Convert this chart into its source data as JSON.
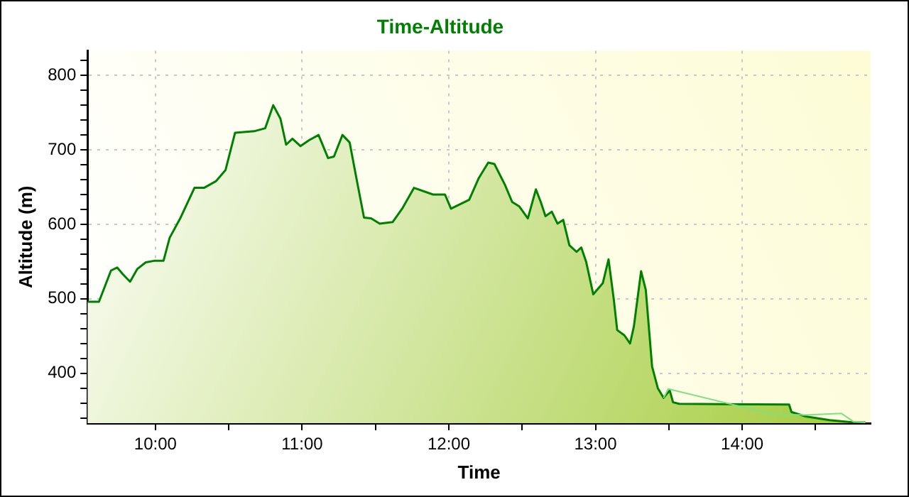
{
  "chart_data": {
    "type": "area",
    "title": "Time-Altitude",
    "xlabel": "Time",
    "ylabel": "Altitude (m)",
    "xlim": [
      9.537,
      14.876
    ],
    "ylim": [
      333,
      833
    ],
    "xticks": [
      {
        "value": 10,
        "label": "10:00"
      },
      {
        "value": 10.5,
        "label": null
      },
      {
        "value": 11,
        "label": "11:00"
      },
      {
        "value": 11.5,
        "label": null
      },
      {
        "value": 12,
        "label": "12:00"
      },
      {
        "value": 12.5,
        "label": null
      },
      {
        "value": 13,
        "label": "13:00"
      },
      {
        "value": 13.5,
        "label": null
      },
      {
        "value": 14,
        "label": "14:00"
      },
      {
        "value": 14.5,
        "label": null
      }
    ],
    "yticks": [
      {
        "value": 340,
        "label": null
      },
      {
        "value": 360,
        "label": null
      },
      {
        "value": 380,
        "label": null
      },
      400,
      {
        "value": 420,
        "label": null
      },
      {
        "value": 440,
        "label": null
      },
      {
        "value": 460,
        "label": null
      },
      {
        "value": 480,
        "label": null
      },
      500,
      {
        "value": 520,
        "label": null
      },
      {
        "value": 540,
        "label": null
      },
      {
        "value": 560,
        "label": null
      },
      {
        "value": 580,
        "label": null
      },
      600,
      {
        "value": 620,
        "label": null
      },
      {
        "value": 640,
        "label": null
      },
      {
        "value": 660,
        "label": null
      },
      {
        "value": 680,
        "label": null
      },
      700,
      {
        "value": 720,
        "label": null
      },
      {
        "value": 740,
        "label": null
      },
      {
        "value": 760,
        "label": null
      },
      {
        "value": 780,
        "label": null
      },
      800,
      {
        "value": 820,
        "label": null
      }
    ],
    "grid": true,
    "legend": false,
    "marker": "none",
    "line_style": "solid",
    "series": [
      {
        "type": "area",
        "color": "#008000",
        "x": [
          9.537,
          9.615,
          9.697,
          9.739,
          9.778,
          9.827,
          9.876,
          9.934,
          9.99,
          10.055,
          10.097,
          10.169,
          10.266,
          10.331,
          10.413,
          10.478,
          10.543,
          10.673,
          10.748,
          10.803,
          10.852,
          10.891,
          10.934,
          10.989,
          11.047,
          11.112,
          11.177,
          11.217,
          11.275,
          11.324,
          11.373,
          11.422,
          11.47,
          11.529,
          11.617,
          11.682,
          11.763,
          11.893,
          11.974,
          12.015,
          12.139,
          12.204,
          12.269,
          12.311,
          12.383,
          12.432,
          12.481,
          12.539,
          12.594,
          12.627,
          12.659,
          12.702,
          12.741,
          12.78,
          12.822,
          12.871,
          12.903,
          12.936,
          12.985,
          13.05,
          13.089,
          13.125,
          13.148,
          13.197,
          13.236,
          13.262,
          13.311,
          13.343,
          13.386,
          13.425,
          13.464,
          13.506,
          13.529,
          13.571,
          14.32,
          14.336,
          14.433,
          14.596,
          14.759,
          14.84
        ],
        "values": [
          496,
          496,
          538,
          542,
          533,
          523,
          540,
          549,
          551,
          551,
          582,
          608,
          649,
          649,
          658,
          673,
          723,
          725,
          729,
          760,
          742,
          707,
          715,
          705,
          713,
          720,
          689,
          691,
          720,
          710,
          659,
          609,
          608,
          601,
          603,
          621,
          649,
          640,
          640,
          621,
          633,
          662,
          683,
          681,
          653,
          630,
          624,
          608,
          647,
          630,
          611,
          617,
          601,
          606,
          572,
          563,
          569,
          550,
          506,
          521,
          553,
          499,
          458,
          451,
          440,
          463,
          537,
          512,
          409,
          380,
          367,
          377,
          361,
          359,
          358,
          348,
          342,
          337,
          334,
          334
        ]
      },
      {
        "type": "line",
        "color": "#80e080",
        "x": [
          13.464,
          13.496,
          14.206,
          14.433,
          14.677,
          14.759,
          14.84
        ],
        "values": [
          367,
          379,
          345,
          344,
          346,
          335,
          334
        ]
      }
    ]
  }
}
